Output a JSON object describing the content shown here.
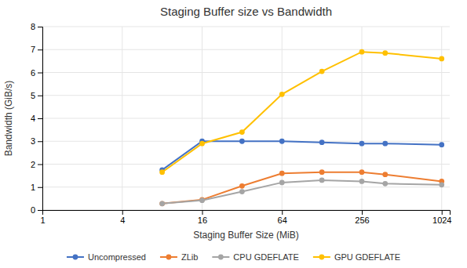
{
  "chart_data": {
    "type": "line",
    "title": "Staging Buffer size vs Bandwidth",
    "xlabel": "Staging Buffer Size (MiB)",
    "ylabel": "Bandwidth (GiB/s)",
    "x": [
      8,
      16,
      32,
      64,
      128,
      256,
      384,
      1024
    ],
    "series": [
      {
        "name": "Uncompressed",
        "color": "#4472C4",
        "marker": "circle",
        "values": [
          1.75,
          3.0,
          3.0,
          3.0,
          2.95,
          2.9,
          2.9,
          2.85
        ]
      },
      {
        "name": "ZLib",
        "color": "#ED7D31",
        "marker": "circle",
        "values": [
          0.28,
          0.45,
          1.05,
          1.6,
          1.65,
          1.65,
          1.55,
          1.25
        ]
      },
      {
        "name": "CPU GDEFLATE",
        "color": "#A5A5A5",
        "marker": "circle",
        "values": [
          0.28,
          0.42,
          0.8,
          1.2,
          1.3,
          1.25,
          1.15,
          1.1
        ]
      },
      {
        "name": "GPU GDEFLATE",
        "color": "#FFC000",
        "marker": "circle",
        "values": [
          1.65,
          2.9,
          3.4,
          5.05,
          6.05,
          6.9,
          6.85,
          6.6
        ]
      }
    ],
    "log": "x",
    "xlim": [
      1,
      1177.6
    ],
    "xticks": [
      1,
      4,
      16,
      64,
      256,
      1024
    ],
    "ylim": [
      0,
      8
    ],
    "yticks": [
      0,
      1,
      2,
      3,
      4,
      5,
      6,
      7,
      8
    ],
    "grid": true,
    "legend": "bottom"
  }
}
